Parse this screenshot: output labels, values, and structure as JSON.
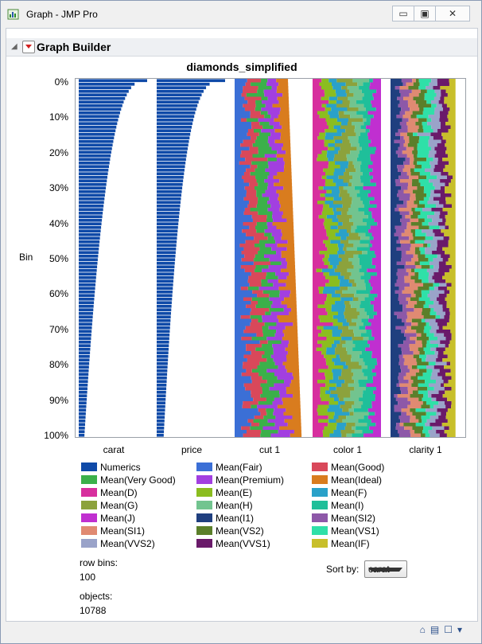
{
  "window": {
    "title": "Graph - JMP Pro",
    "minimize_label": "▭",
    "maximize_label": "▣",
    "close_label": "✕"
  },
  "outline": {
    "title": "Graph Builder",
    "disclosure_label": "◢"
  },
  "chart_data": {
    "type": "bar",
    "title": "diamonds_simplified",
    "ylabel": "Bin",
    "ytick_labels": [
      "0%",
      "10%",
      "20%",
      "30%",
      "40%",
      "50%",
      "60%",
      "70%",
      "80%",
      "90%",
      "100%"
    ],
    "columns": [
      "carat",
      "price",
      "cut 1",
      "color 1",
      "clarity 1"
    ],
    "row_bins": 100,
    "legend": [
      {
        "name": "Numerics",
        "color": "#0f4aa8"
      },
      {
        "name": "Mean(Fair)",
        "color": "#3b6fd6"
      },
      {
        "name": "Mean(Good)",
        "color": "#d9485a"
      },
      {
        "name": "Mean(Very Good)",
        "color": "#3bb04a"
      },
      {
        "name": "Mean(Premium)",
        "color": "#a23fe0"
      },
      {
        "name": "Mean(Ideal)",
        "color": "#d97c1e"
      },
      {
        "name": "Mean(D)",
        "color": "#d72f9e"
      },
      {
        "name": "Mean(E)",
        "color": "#8bbd1f"
      },
      {
        "name": "Mean(F)",
        "color": "#2aa1c9"
      },
      {
        "name": "Mean(G)",
        "color": "#8ca23c"
      },
      {
        "name": "Mean(H)",
        "color": "#72c48f"
      },
      {
        "name": "Mean(I)",
        "color": "#1fbf9a"
      },
      {
        "name": "Mean(J)",
        "color": "#c02fd0"
      },
      {
        "name": "Mean(I1)",
        "color": "#1f3f7f"
      },
      {
        "name": "Mean(SI2)",
        "color": "#8d58a8"
      },
      {
        "name": "Mean(SI1)",
        "color": "#e08a72"
      },
      {
        "name": "Mean(VS2)",
        "color": "#5b7f2a"
      },
      {
        "name": "Mean(VS1)",
        "color": "#2fe0a8"
      },
      {
        "name": "Mean(VVS2)",
        "color": "#9aa3c9"
      },
      {
        "name": "Mean(VVS1)",
        "color": "#6a1a6a"
      },
      {
        "name": "Mean(IF)",
        "color": "#c8bf2a"
      }
    ]
  },
  "info": {
    "row_bins_label": "row bins:",
    "row_bins_value": "100",
    "objects_label": "objects:",
    "objects_value": "10788",
    "sort_by_label": "Sort by:",
    "sort_by_value": "carat"
  },
  "statusbar": {
    "home_icon": "⌂",
    "table_icon": "▤",
    "box_icon": "☐",
    "menu_icon": "▾"
  }
}
